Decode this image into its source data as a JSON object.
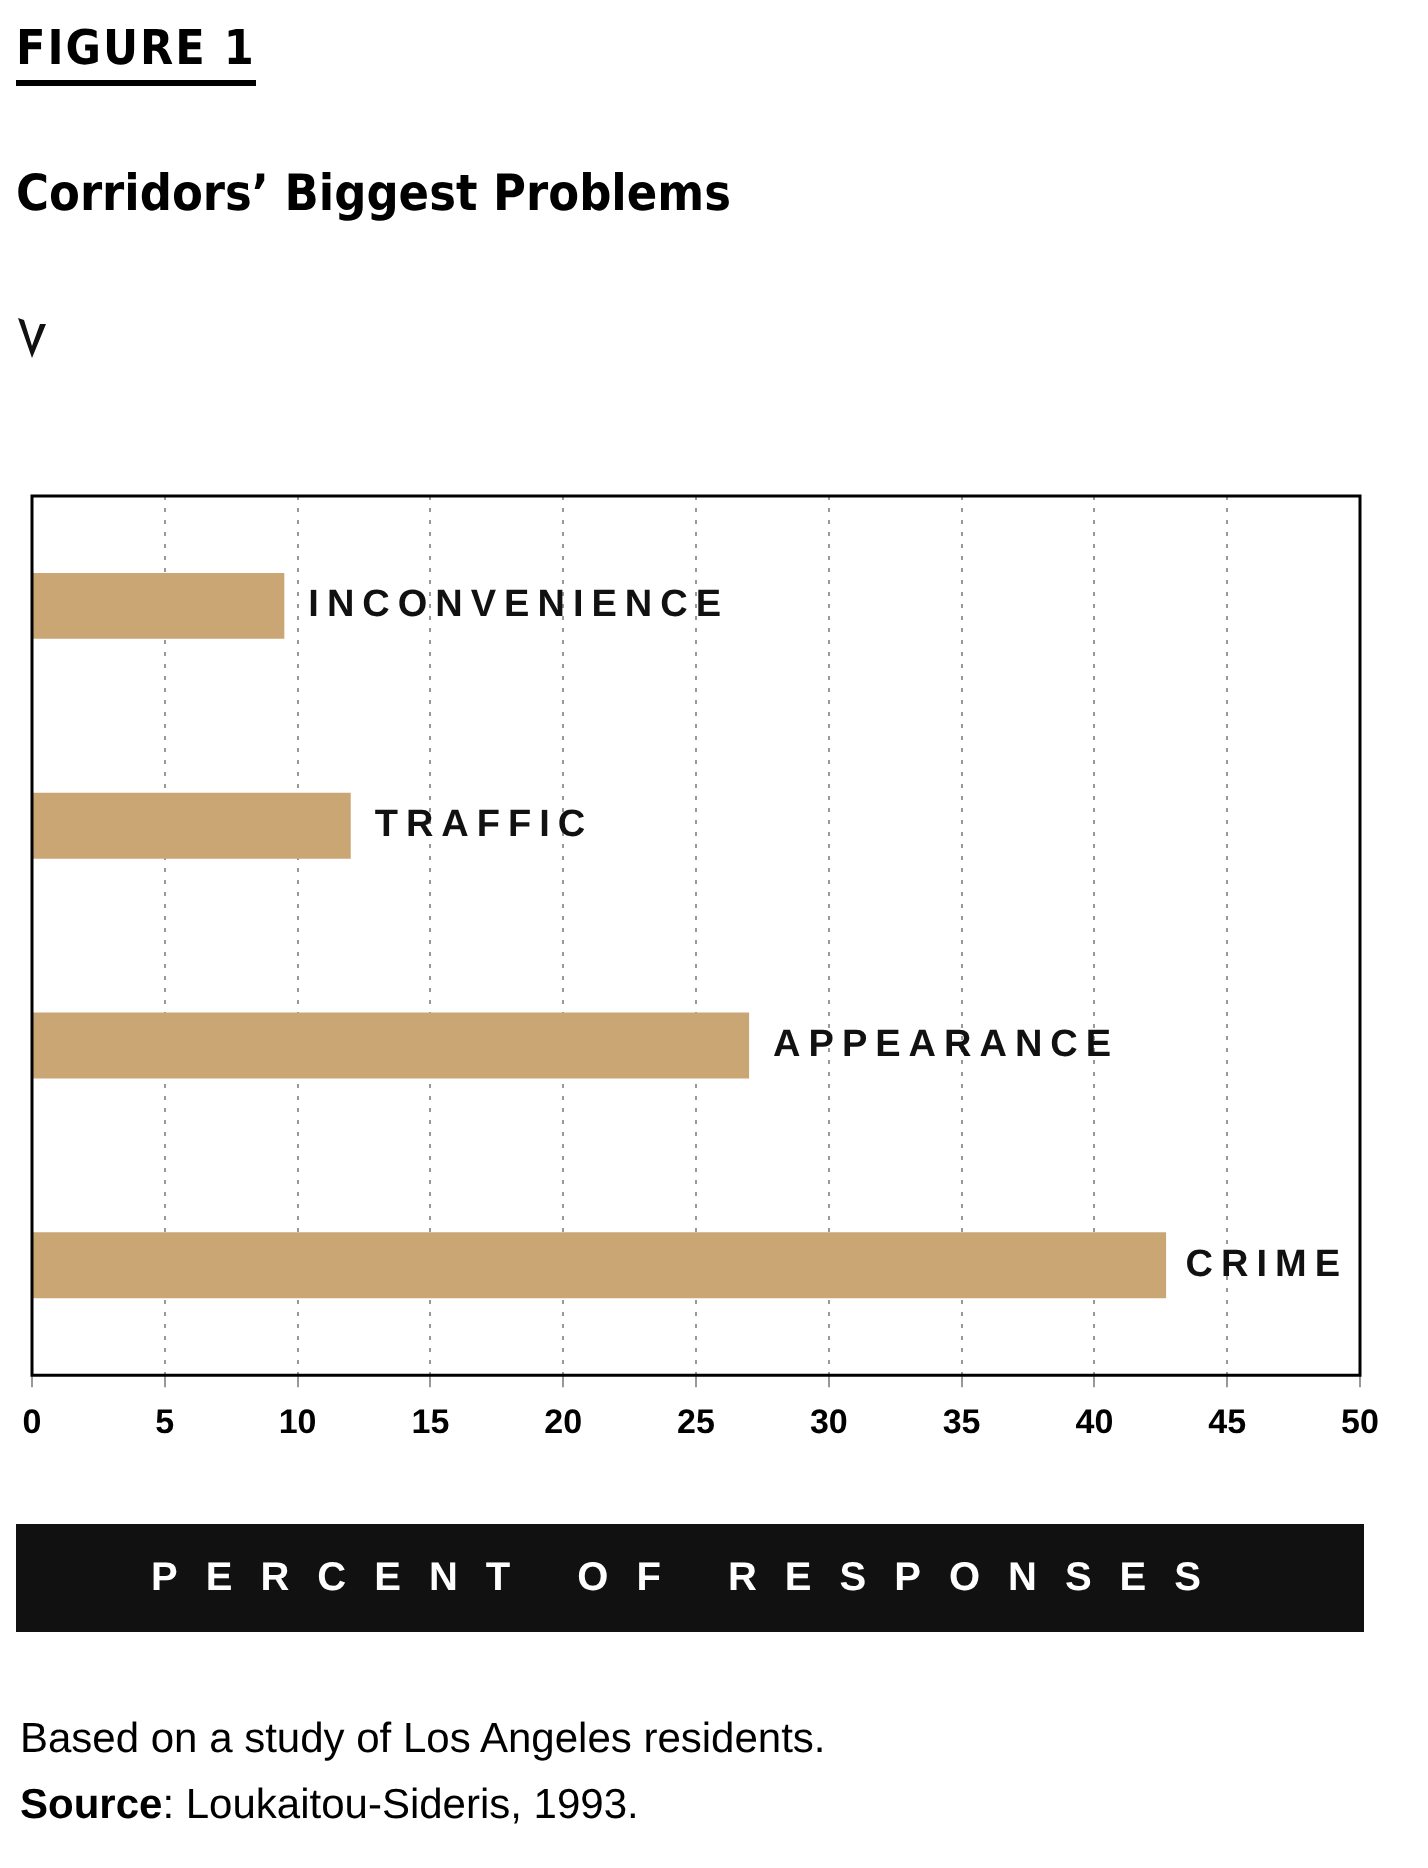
{
  "chart_data": {
    "type": "bar",
    "orientation": "horizontal",
    "title": "FIGURE 1",
    "subtitle": "Corridors’ Biggest Problems",
    "xlabel": "PERCENT OF RESPONSES",
    "categories": [
      "INCONVENIENCE",
      "TRAFFIC",
      "APPEARANCE",
      "CRIME"
    ],
    "values": [
      9.5,
      12,
      27,
      42.7
    ],
    "color": "#c9a674",
    "xlim": [
      0,
      50
    ],
    "xticks": [
      0,
      5,
      10,
      15,
      20,
      25,
      30,
      35,
      40,
      45,
      50
    ],
    "grid": "x",
    "legend": false,
    "tick_labels": "x",
    "annotations": [
      "Based on a study of Los Angeles residents.",
      "Source: Loukaitou-Sideris, 1993."
    ]
  }
}
